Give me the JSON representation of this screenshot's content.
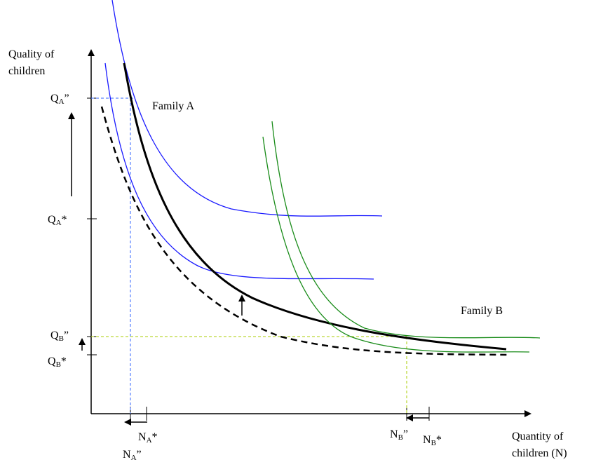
{
  "axes": {
    "y_label": [
      "Quality of",
      "children"
    ],
    "x_label": [
      "Quantity of",
      "children (N)"
    ]
  },
  "curve_labels": {
    "family_a": "Family A",
    "family_b": "Family B"
  },
  "y_ticks": [
    {
      "base": "Q",
      "sub": "A",
      "mark": "”"
    },
    {
      "base": "Q",
      "sub": "A",
      "mark": "*"
    },
    {
      "base": "Q",
      "sub": "B",
      "mark": "”"
    },
    {
      "base": "Q",
      "sub": "B",
      "mark": "*"
    }
  ],
  "x_ticks": [
    {
      "base": "N",
      "sub": "A",
      "mark": "*"
    },
    {
      "base": "N",
      "sub": "A",
      "mark": "”"
    },
    {
      "base": "N",
      "sub": "B",
      "mark": "”"
    },
    {
      "base": "N",
      "sub": "B",
      "mark": "*"
    }
  ]
}
